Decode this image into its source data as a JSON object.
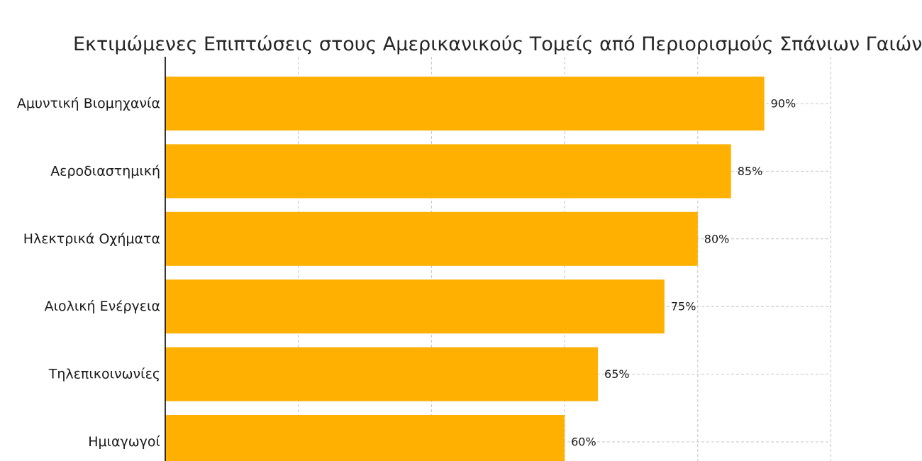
{
  "chart_data": {
    "type": "bar",
    "orientation": "horizontal",
    "title": "Εκτιμώμενες Επιπτώσεις στους Αμερικανικούς Τομείς από Περιορισμούς Σπάνιων Γαιών",
    "xlabel": "",
    "ylabel": "",
    "categories": [
      "Αμυντική Βιομηχανία",
      "Αεροδιαστημική",
      "Ηλεκτρικά Οχήματα",
      "Αιολική Ενέργεια",
      "Τηλεπικοινωνίες",
      "Ημιαγωγοί"
    ],
    "values": [
      90,
      85,
      80,
      75,
      65,
      60
    ],
    "value_labels": [
      "90%",
      "85%",
      "80%",
      "75%",
      "65%",
      "60%"
    ],
    "xlim": [
      0,
      100
    ],
    "grid": true,
    "bar_color": "#ffb000"
  }
}
